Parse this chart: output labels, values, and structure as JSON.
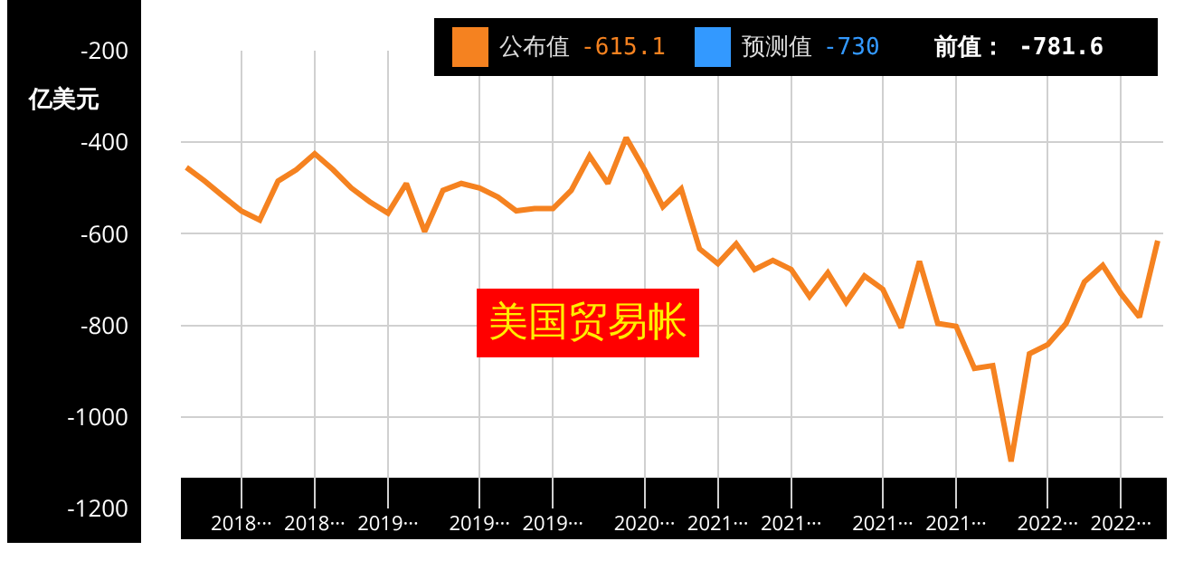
{
  "chart_data": {
    "type": "line",
    "title": "美国贸易帐",
    "ylabel": "亿美元",
    "categories": [
      null,
      null,
      null,
      "2018···",
      null,
      null,
      null,
      "2018···",
      null,
      null,
      null,
      "2019···",
      null,
      null,
      null,
      null,
      "2019···",
      null,
      null,
      null,
      "2019···",
      null,
      null,
      null,
      null,
      "2020···",
      null,
      null,
      null,
      "2021···",
      null,
      null,
      null,
      "2021···",
      null,
      null,
      null,
      null,
      "2021···",
      null,
      null,
      null,
      "2021···",
      null,
      null,
      null,
      null,
      "2022···",
      null,
      null,
      null,
      "2022···",
      null,
      null
    ],
    "series": [
      {
        "name": "公布值",
        "color": "#f58220",
        "values": [
          -455,
          -485,
          -518,
          -550,
          -570,
          -485,
          -460,
          -425,
          -460,
          -500,
          -530,
          -555,
          -490,
          -595,
          -505,
          -490,
          -500,
          -520,
          -550,
          -545,
          -545,
          -505,
          -430,
          -490,
          -390,
          -460,
          -541,
          -502,
          -633,
          -665,
          -622,
          -678,
          -658,
          -678,
          -737,
          -685,
          -750,
          -692,
          -721,
          -805,
          -660,
          -796,
          -802,
          -894,
          -888,
          -1097,
          -862,
          -842,
          -796,
          -705,
          -669,
          -731,
          -782,
          -615
        ]
      },
      {
        "name": "预测值",
        "color": "#3399ff",
        "values": [
          null,
          null,
          null,
          null,
          null,
          null,
          null,
          null,
          null,
          null,
          null,
          null,
          null,
          null,
          null,
          null,
          null,
          null,
          null,
          null,
          null,
          null,
          null,
          null,
          null,
          null,
          null,
          null,
          null,
          null,
          null,
          null,
          null,
          null,
          null,
          null,
          null,
          null,
          null,
          null,
          null,
          null,
          null,
          null,
          null,
          null,
          null,
          null,
          null,
          null,
          null,
          null,
          null,
          null
        ]
      }
    ],
    "annotations": [
      "-615.1",
      "-730",
      "前值： -781.6"
    ],
    "ylim": [
      -1200,
      -200
    ],
    "yticks": [
      -200,
      -400,
      -600,
      -800,
      -1000,
      -1200
    ],
    "grid": true,
    "legend": "top right"
  }
}
